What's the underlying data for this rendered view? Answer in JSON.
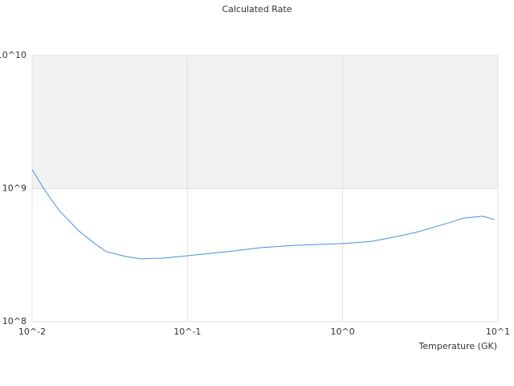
{
  "chart_data": {
    "type": "line",
    "title": "Calculated Rate",
    "x_label": "Temperature (GK)",
    "x_scale": "log",
    "y_scale": "log",
    "grid": true,
    "xlim": [
      0.01,
      10
    ],
    "ylim": [
      100000000,
      10000000000
    ],
    "xticks": [
      {
        "value": 0.01,
        "label": "10^-2"
      },
      {
        "value": 0.1,
        "label": "10^-1"
      },
      {
        "value": 1,
        "label": "10^0"
      },
      {
        "value": 10,
        "label": "10^1"
      }
    ],
    "yticks": [
      {
        "value": 100000000,
        "label": "10^8"
      },
      {
        "value": 1000000000,
        "label": "10^9"
      },
      {
        "value": 10000000000,
        "label": "10^10"
      }
    ],
    "x": [
      0.01,
      0.012,
      0.015,
      0.02,
      0.025,
      0.03,
      0.04,
      0.05,
      0.06,
      0.07,
      0.1,
      0.2,
      0.3,
      0.5,
      1,
      1.5,
      2,
      3,
      5,
      6,
      8,
      9.5
    ],
    "series": [
      {
        "color": "#4a90e2",
        "values": [
          1390000000,
          980000000,
          680000000,
          480000000,
          390000000,
          336000000,
          309000000,
          296000000,
          299000000,
          300000000,
          313000000,
          340000000,
          360000000,
          375000000,
          386000000,
          400000000,
          425000000,
          470000000,
          560000000,
          600000000,
          620000000,
          585000000
        ]
      }
    ]
  }
}
